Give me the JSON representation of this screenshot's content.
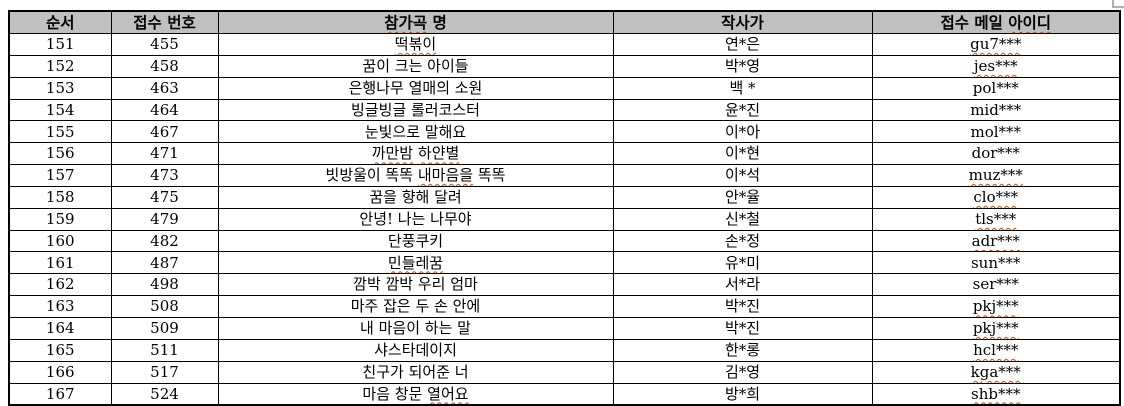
{
  "colors": {
    "header_bg": "#c0c0c0",
    "border": "#000000",
    "text": "#000000",
    "squiggle": "#cc4a00",
    "page_bg": "#ffffff"
  },
  "table": {
    "columns": [
      {
        "key": "order",
        "label_parts": [
          {
            "t": "순서",
            "m": false
          }
        ]
      },
      {
        "key": "number",
        "label_parts": [
          {
            "t": "접수 번호",
            "m": false
          }
        ]
      },
      {
        "key": "song",
        "label_parts": [
          {
            "t": "참가곡",
            "m": true
          },
          {
            "t": " 명",
            "m": false
          }
        ]
      },
      {
        "key": "writer",
        "label_parts": [
          {
            "t": "작사가",
            "m": false
          }
        ]
      },
      {
        "key": "email",
        "label_parts": [
          {
            "t": "접수 메일 ",
            "m": false
          },
          {
            "t": "아이디",
            "m": true
          }
        ]
      }
    ],
    "rows": [
      {
        "order": "151",
        "number": "455",
        "song_parts": [
          {
            "t": "떡볶이",
            "m": true
          }
        ],
        "writer": "연*은",
        "email_parts": [
          {
            "t": "gu7***",
            "m": true
          }
        ]
      },
      {
        "order": "152",
        "number": "458",
        "song_parts": [
          {
            "t": "꿈이 크는 아이들",
            "m": false
          }
        ],
        "writer": "박*영",
        "email_parts": [
          {
            "t": "jes***",
            "m": true
          }
        ]
      },
      {
        "order": "153",
        "number": "463",
        "song_parts": [
          {
            "t": "은행나무 열매의 소원",
            "m": false
          }
        ],
        "writer": "백 *",
        "email_parts": [
          {
            "t": "pol***",
            "m": false
          }
        ]
      },
      {
        "order": "154",
        "number": "464",
        "song_parts": [
          {
            "t": "빙글빙글 롤러코스터",
            "m": false
          }
        ],
        "writer": "윤*진",
        "email_parts": [
          {
            "t": "mid***",
            "m": false
          }
        ]
      },
      {
        "order": "155",
        "number": "467",
        "song_parts": [
          {
            "t": "눈빛으로 말해요",
            "m": false
          }
        ],
        "writer": "이*아",
        "email_parts": [
          {
            "t": "mol***",
            "m": false
          }
        ]
      },
      {
        "order": "156",
        "number": "471",
        "song_parts": [
          {
            "t": "까만밤",
            "m": true
          },
          {
            "t": " ",
            "m": false
          },
          {
            "t": "하얀별",
            "m": true
          }
        ],
        "writer": "이*현",
        "email_parts": [
          {
            "t": "dor***",
            "m": false
          }
        ]
      },
      {
        "order": "157",
        "number": "473",
        "song_parts": [
          {
            "t": "빗방울이 똑똑 ",
            "m": false
          },
          {
            "t": "내마음을",
            "m": true
          },
          {
            "t": " 똑똑",
            "m": false
          }
        ],
        "writer": "이*석",
        "email_parts": [
          {
            "t": "muz***",
            "m": true
          }
        ]
      },
      {
        "order": "158",
        "number": "475",
        "song_parts": [
          {
            "t": "꿈을 향해 달려",
            "m": false
          }
        ],
        "writer": "안*율",
        "email_parts": [
          {
            "t": "clo***",
            "m": true
          }
        ]
      },
      {
        "order": "159",
        "number": "479",
        "song_parts": [
          {
            "t": "안녕! 나는 나무야",
            "m": false
          }
        ],
        "writer": "신*철",
        "email_parts": [
          {
            "t": "tls***",
            "m": true
          }
        ]
      },
      {
        "order": "160",
        "number": "482",
        "song_parts": [
          {
            "t": "단풍쿠키",
            "m": false
          }
        ],
        "writer": "손*정",
        "email_parts": [
          {
            "t": "adr***",
            "m": true
          }
        ]
      },
      {
        "order": "161",
        "number": "487",
        "song_parts": [
          {
            "t": "민들레꿈",
            "m": true
          }
        ],
        "writer": "유*미",
        "email_parts": [
          {
            "t": "sun***",
            "m": false
          }
        ]
      },
      {
        "order": "162",
        "number": "498",
        "song_parts": [
          {
            "t": "깜박 깜박 우리 엄마",
            "m": false
          }
        ],
        "writer": "서*라",
        "email_parts": [
          {
            "t": "ser***",
            "m": false
          }
        ]
      },
      {
        "order": "163",
        "number": "508",
        "song_parts": [
          {
            "t": "마주 잡은 두 손 안에",
            "m": false
          }
        ],
        "writer": "박*진",
        "email_parts": [
          {
            "t": "pkj***",
            "m": true
          }
        ]
      },
      {
        "order": "164",
        "number": "509",
        "song_parts": [
          {
            "t": "내 마음이 하는 말",
            "m": false
          }
        ],
        "writer": "박*진",
        "email_parts": [
          {
            "t": "pkj***",
            "m": true
          }
        ]
      },
      {
        "order": "165",
        "number": "511",
        "song_parts": [
          {
            "t": "샤스타데이지",
            "m": false
          }
        ],
        "writer": "한*롱",
        "email_parts": [
          {
            "t": "hcl***",
            "m": true
          }
        ]
      },
      {
        "order": "166",
        "number": "517",
        "song_parts": [
          {
            "t": "친구가 되어준 너",
            "m": false
          }
        ],
        "writer": "김*영",
        "email_parts": [
          {
            "t": "kga***",
            "m": true
          }
        ]
      },
      {
        "order": "167",
        "number": "524",
        "song_parts": [
          {
            "t": "마음 창문 ",
            "m": false
          },
          {
            "t": "열어요",
            "m": true
          }
        ],
        "writer": "방*희",
        "email_parts": [
          {
            "t": "shb***",
            "m": true
          }
        ]
      }
    ]
  }
}
